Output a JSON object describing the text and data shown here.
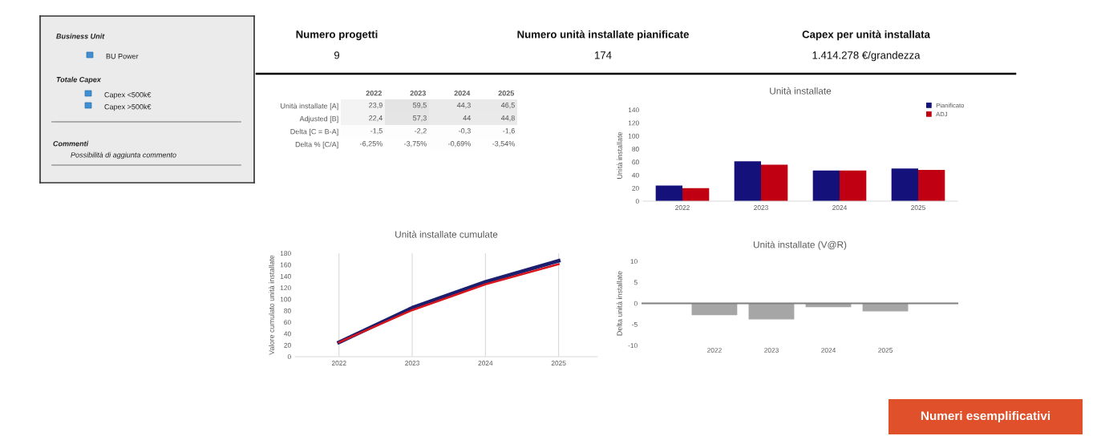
{
  "chart_data": [
    {
      "type": "other",
      "annotations": [
        "Business Unit",
        "BU Power",
        "Totale Capex",
        "Capex <500k€",
        "Capex >500k€",
        "Commenti",
        "Possibilità di aggiunta commento"
      ]
    },
    {
      "type": "other",
      "categories": [
        "Numero progetti",
        "Numero unità installate pianificate",
        "Capex per unità installata"
      ],
      "value_labels": [
        "9",
        "174",
        "1.414.278 €/grandezza"
      ]
    },
    {
      "type": "heatmap",
      "categories": [
        "2022",
        "2023",
        "2024",
        "2025"
      ],
      "cells": [
        [
          23.9,
          59.5,
          44.3,
          46.5
        ],
        [
          22.4,
          57.3,
          44,
          44.8
        ],
        [
          -1.5,
          -2.2,
          -0.3,
          -1.6
        ],
        [
          -6.25,
          -3.75,
          -0.69,
          -3.54
        ]
      ],
      "y_categories": [
        "Unità installate [A]",
        "Adjusted [B]",
        "Delta [C = B-A]",
        "Delta % [C/A]"
      ],
      "cell_labels": [
        [
          "23,9",
          "59,5",
          "44,3",
          "46,5"
        ],
        [
          "22,4",
          "57,3",
          "44",
          "44,8"
        ],
        [
          "-1,5",
          "-2,2",
          "-0,3",
          "-1,6"
        ],
        [
          "-6,25%",
          "-3,75%",
          "-0,69%",
          "-3,54%"
        ]
      ]
    },
    {
      "type": "bar",
      "title": "Unità installate",
      "ylabel": "Unità installate",
      "categories": [
        "2022",
        "2023",
        "2024",
        "2025"
      ],
      "series": [
        {
          "name": "Pianificato",
          "color": "#14127a",
          "values": [
            24,
            61,
            47,
            50
          ]
        },
        {
          "name": "ADJ",
          "color": "#c00012",
          "values": [
            20,
            56,
            47,
            48
          ]
        }
      ],
      "ylim": [
        0,
        140
      ],
      "yticks": [
        0,
        20,
        40,
        60,
        80,
        100,
        120,
        140
      ],
      "legend": "top right"
    },
    {
      "type": "line",
      "title": "Unità installate cumulate",
      "ylabel": "Valore cumulato unità installate",
      "categories": [
        "2022",
        "2023",
        "2024",
        "2025"
      ],
      "series": [
        {
          "color": "#1b1f6e",
          "values": [
            25,
            85,
            130,
            167
          ]
        },
        {
          "color": "#d8141c",
          "values": [
            25,
            81,
            126,
            161
          ]
        }
      ],
      "ylim": [
        0,
        180
      ],
      "yticks": [
        0,
        20,
        40,
        60,
        80,
        100,
        120,
        140,
        160,
        180
      ],
      "grid": "x"
    },
    {
      "type": "bar",
      "title": "Unità installate (V@R)",
      "ylabel": "Delta unità installate",
      "categories": [
        "2022",
        "2023",
        "2024",
        "2025"
      ],
      "values": [
        -2.8,
        -3.8,
        -0.9,
        -1.9
      ],
      "color": "#a6a6a6",
      "ylim": [
        -10,
        10
      ],
      "yticks": [
        10,
        5,
        0,
        -5,
        -10
      ]
    },
    {
      "type": "other",
      "annotations": [
        "Numeri esemplificativi"
      ],
      "color": "#e0502a"
    }
  ]
}
